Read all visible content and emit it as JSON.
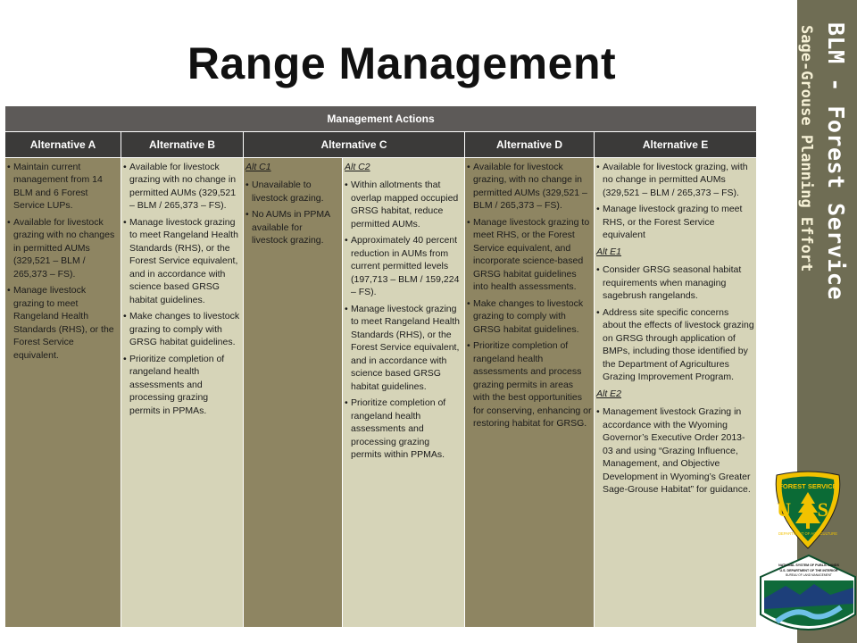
{
  "title": "Range Management",
  "sidebar": {
    "line1": "BLM - Forest Service",
    "line2": "Sage-Grouse Planning Effort"
  },
  "logos": {
    "forest_service": {
      "top_text": "FOREST SERVICE",
      "mid_text": "U S",
      "bottom_text": "DEPARTMENT OF AGRICULTURE"
    },
    "blm": {
      "line1": "NATIONAL SYSTEM OF PUBLIC LANDS",
      "line2": "U.S. DEPARTMENT OF THE INTERIOR",
      "line3": "BUREAU OF LAND MANAGEMENT"
    }
  },
  "table": {
    "header": "Management Actions",
    "columns": [
      "Alternative A",
      "Alternative B",
      "Alternative C",
      "Alternative D",
      "Alternative E"
    ],
    "alt_a": [
      "Maintain current management from 14 BLM and 6 Forest Service LUPs.",
      "Available for livestock grazing with no changes in permitted AUMs (329,521 – BLM / 265,373 – FS).",
      "Manage livestock grazing to meet Rangeland Health Standards (RHS), or the Forest Service equivalent."
    ],
    "alt_b": [
      "Available for livestock grazing with no change in permitted AUMs (329,521 – BLM / 265,373 – FS).",
      "Manage livestock grazing to meet Rangeland Health Standards (RHS), or the Forest Service equivalent, and in accordance with science based GRSG habitat guidelines.",
      "Make changes to livestock grazing to comply with GRSG habitat guidelines.",
      "Prioritize completion of rangeland health assessments and processing grazing permits in PPMAs."
    ],
    "alt_c1": {
      "label": "Alt C1",
      "items": [
        "Unavailable to livestock grazing.",
        "No AUMs in PPMA available for livestock grazing."
      ]
    },
    "alt_c2": {
      "label": "Alt C2",
      "items": [
        "Within allotments that overlap mapped occupied GRSG habitat, reduce permitted AUMs.",
        "Approximately 40 percent reduction in AUMs from current permitted levels (197,713 – BLM / 159,224 – FS).",
        "Manage livestock grazing to meet Rangeland Health Standards (RHS), or the Forest Service equivalent, and in accordance with science based GRSG habitat guidelines.",
        "Prioritize completion of rangeland health assessments and processing grazing permits within PPMAs."
      ]
    },
    "alt_d": [
      "Available for livestock grazing, with no change in permitted AUMs (329,521 – BLM / 265,373 – FS).",
      "Manage livestock grazing to meet RHS, or the Forest Service equivalent, and incorporate science-based GRSG habitat guidelines into health assessments.",
      "Make changes to livestock grazing to comply with GRSG habitat guidelines.",
      "Prioritize completion of rangeland health assessments and process grazing permits in areas with the best opportunities for conserving, enhancing or restoring habitat for GRSG."
    ],
    "alt_e": {
      "items": [
        "Available for livestock grazing, with no change in permitted AUMs (329,521 – BLM / 265,373 – FS).",
        "Manage livestock grazing to meet RHS, or the Forest Service equivalent"
      ],
      "e1_label": "Alt E1",
      "e1_items": [
        "Consider GRSG seasonal habitat requirements when managing sagebrush rangelands.",
        "Address site specific concerns about the effects of livestock grazing on GRSG through application of BMPs, including those identified by the Department of Agricultures Grazing Improvement Program."
      ],
      "e2_label": "Alt E2",
      "e2_items": [
        "Management livestock Grazing in accordance with the Wyoming Governor’s Executive Order 2013-03 and using “Grazing Influence, Management, and Objective Development in Wyoming’s Greater Sage-Grouse Habitat” for guidance."
      ]
    }
  }
}
